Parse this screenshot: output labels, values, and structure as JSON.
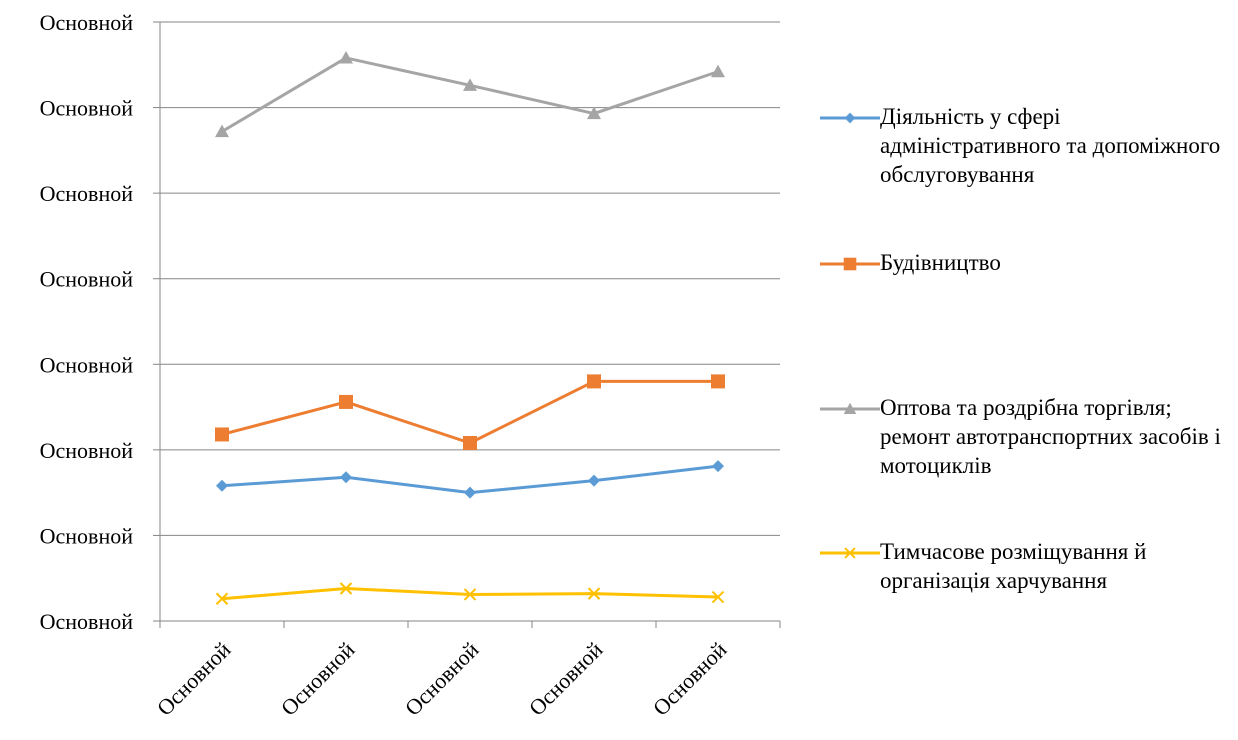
{
  "chart_data": {
    "type": "line",
    "title": "",
    "xlabel": "",
    "ylabel": "",
    "y_tick_labels": [
      "Основной",
      "Основной",
      "Основной",
      "Основной",
      "Основной",
      "Основной",
      "Основной",
      "Основной"
    ],
    "categories": [
      "Основной",
      "Основной",
      "Основной",
      "Основной",
      "Основной"
    ],
    "ylim": [
      0,
      7
    ],
    "grid": "horizontal",
    "legend_position": "right",
    "series": [
      {
        "name": "Діяльність у сфері адміністративного та допоміжного обслуговування",
        "color": "#5b9bd5",
        "marker": "diamond",
        "values": [
          1.58,
          1.68,
          1.5,
          1.64,
          1.81
        ]
      },
      {
        "name": "Будівництво",
        "color": "#ed7d31",
        "marker": "square",
        "values": [
          2.18,
          2.56,
          2.08,
          2.8,
          2.8
        ]
      },
      {
        "name": "Оптова та роздрібна торгівля; ремонт автотранспортних засобів і мотоциклів",
        "color": "#a5a5a5",
        "marker": "triangle",
        "values": [
          5.72,
          6.58,
          6.26,
          5.93,
          6.42
        ]
      },
      {
        "name": "Тимчасове розміщування й організація харчування",
        "color": "#ffc000",
        "marker": "x",
        "values": [
          0.26,
          0.38,
          0.31,
          0.32,
          0.28
        ]
      }
    ]
  }
}
